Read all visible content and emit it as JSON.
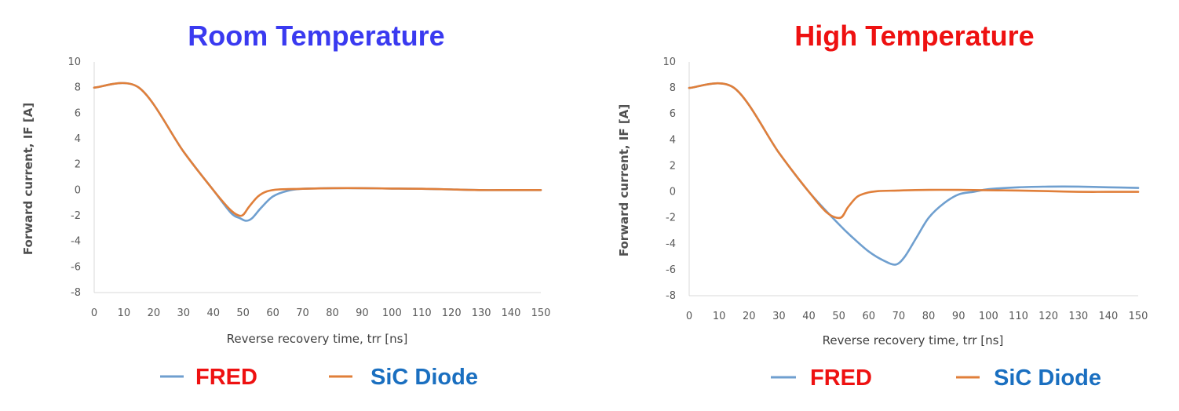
{
  "colors": {
    "fred": "#6f9fcf",
    "sic": "#e07f3a",
    "title_room": "#3a3af0",
    "title_high": "#ee1111",
    "legend_fred_text": "#ee1111",
    "legend_sic_text": "#1a6fc0",
    "axis": "#d9d9d9"
  },
  "chart_data": [
    {
      "type": "line",
      "title": "Room Temperature",
      "xlabel": "Reverse recovery time, trr [ns]",
      "ylabel": "Forward current, IF [A]",
      "xlim": [
        0,
        150
      ],
      "ylim": [
        -8,
        10
      ],
      "x_ticks": [
        "0",
        "10",
        "20",
        "30",
        "40",
        "50",
        "60",
        "70",
        "80",
        "90",
        "100",
        "110",
        "120",
        "130",
        "140",
        "150"
      ],
      "y_ticks": [
        "10",
        "8",
        "6",
        "4",
        "2",
        "0",
        "-2",
        "-4",
        "-6",
        "-8"
      ],
      "grid": false,
      "legend": [
        "FRED",
        "SiC Diode"
      ],
      "series": [
        {
          "name": "FRED",
          "x": [
            0,
            15,
            30,
            40,
            46,
            49,
            51,
            53,
            56,
            60,
            65,
            70,
            80,
            90,
            100,
            110,
            120,
            130,
            140,
            150
          ],
          "y": [
            8,
            8,
            3,
            0,
            -1.8,
            -2.2,
            -2.4,
            -2.2,
            -1.4,
            -0.5,
            -0.05,
            0.1,
            0.15,
            0.15,
            0.12,
            0.1,
            0.05,
            0,
            0,
            0
          ]
        },
        {
          "name": "SiC Diode",
          "x": [
            0,
            15,
            30,
            40,
            46,
            49.5,
            52,
            55,
            58,
            62,
            70,
            80,
            90,
            100,
            110,
            120,
            130,
            140,
            150
          ],
          "y": [
            8,
            8,
            3,
            0,
            -1.6,
            -2.0,
            -1.3,
            -0.5,
            -0.1,
            0.05,
            0.1,
            0.15,
            0.15,
            0.12,
            0.1,
            0.05,
            0,
            0,
            0
          ]
        }
      ]
    },
    {
      "type": "line",
      "title": "High Temperature",
      "xlabel": "Reverse recovery time, trr [ns]",
      "ylabel": "Forward current, IF [A]",
      "xlim": [
        0,
        150
      ],
      "ylim": [
        -8,
        10
      ],
      "x_ticks": [
        "0",
        "10",
        "20",
        "30",
        "40",
        "50",
        "60",
        "70",
        "80",
        "90",
        "100",
        "110",
        "120",
        "130",
        "140",
        "150"
      ],
      "y_ticks": [
        "10",
        "8",
        "6",
        "4",
        "2",
        "0",
        "-2",
        "-4",
        "-6",
        "-8"
      ],
      "grid": false,
      "legend": [
        "FRED",
        "SiC Diode"
      ],
      "series": [
        {
          "name": "FRED",
          "x": [
            0,
            15,
            30,
            40,
            50,
            55,
            60,
            65,
            69,
            72,
            76,
            80,
            85,
            90,
            95,
            100,
            110,
            120,
            130,
            140,
            150
          ],
          "y": [
            8,
            8,
            3,
            0,
            -2.5,
            -3.6,
            -4.6,
            -5.3,
            -5.6,
            -5.0,
            -3.5,
            -2.0,
            -0.9,
            -0.2,
            0.0,
            0.2,
            0.35,
            0.4,
            0.4,
            0.35,
            0.3
          ]
        },
        {
          "name": "SiC Diode",
          "x": [
            0,
            15,
            30,
            40,
            46,
            50.5,
            53,
            56,
            59,
            63,
            70,
            80,
            90,
            100,
            110,
            120,
            130,
            140,
            150
          ],
          "y": [
            8,
            8,
            3,
            0,
            -1.6,
            -2.0,
            -1.2,
            -0.4,
            -0.1,
            0.05,
            0.1,
            0.15,
            0.15,
            0.12,
            0.1,
            0.05,
            0,
            0,
            0
          ]
        }
      ]
    }
  ]
}
